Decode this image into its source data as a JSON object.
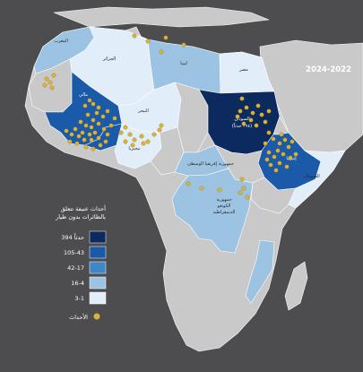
{
  "map": {
    "period": "2024-2022",
    "colors": {
      "background": "#4d4d4f",
      "land_default": "#c9c9c9",
      "border": "#ffffff",
      "event_dot": "#d9b23a",
      "class_1": "#0d2a5e",
      "class_2": "#1a5aa8",
      "class_3": "#3f86c6",
      "class_4": "#9cc3e2",
      "class_5": "#e1edf8"
    },
    "countries": {
      "morocco": "المغرب",
      "algeria": "الجزائر",
      "libya": "ليبيا",
      "egypt": "مصر",
      "mali": "مالي",
      "niger": "النيجر",
      "nigeria": "نيجيريا",
      "sudan": "السودان",
      "sudan_count": "(٣٩٤ حدثاً)",
      "ethiopia": "إثيوبيا",
      "somalia": "الصومال",
      "car": "جمهورية إفريقيا الوسطى",
      "drc_line1": "جمهورية",
      "drc_line2": "الكونغو",
      "drc_line3": "الديمقراطية"
    }
  },
  "legend": {
    "title_line1": "أحداث عنيفة تتعلق",
    "title_line2": "بالطائرات بدون طيار",
    "classes": [
      {
        "label": "394 حدثاً",
        "color": "#0d2a5e"
      },
      {
        "label": "105-43",
        "color": "#1a5aa8"
      },
      {
        "label": "42-17",
        "color": "#3f86c6"
      },
      {
        "label": "16-4",
        "color": "#9cc3e2"
      },
      {
        "label": "3-1",
        "color": "#e1edf8"
      }
    ],
    "events_label": "الأحداث"
  }
}
